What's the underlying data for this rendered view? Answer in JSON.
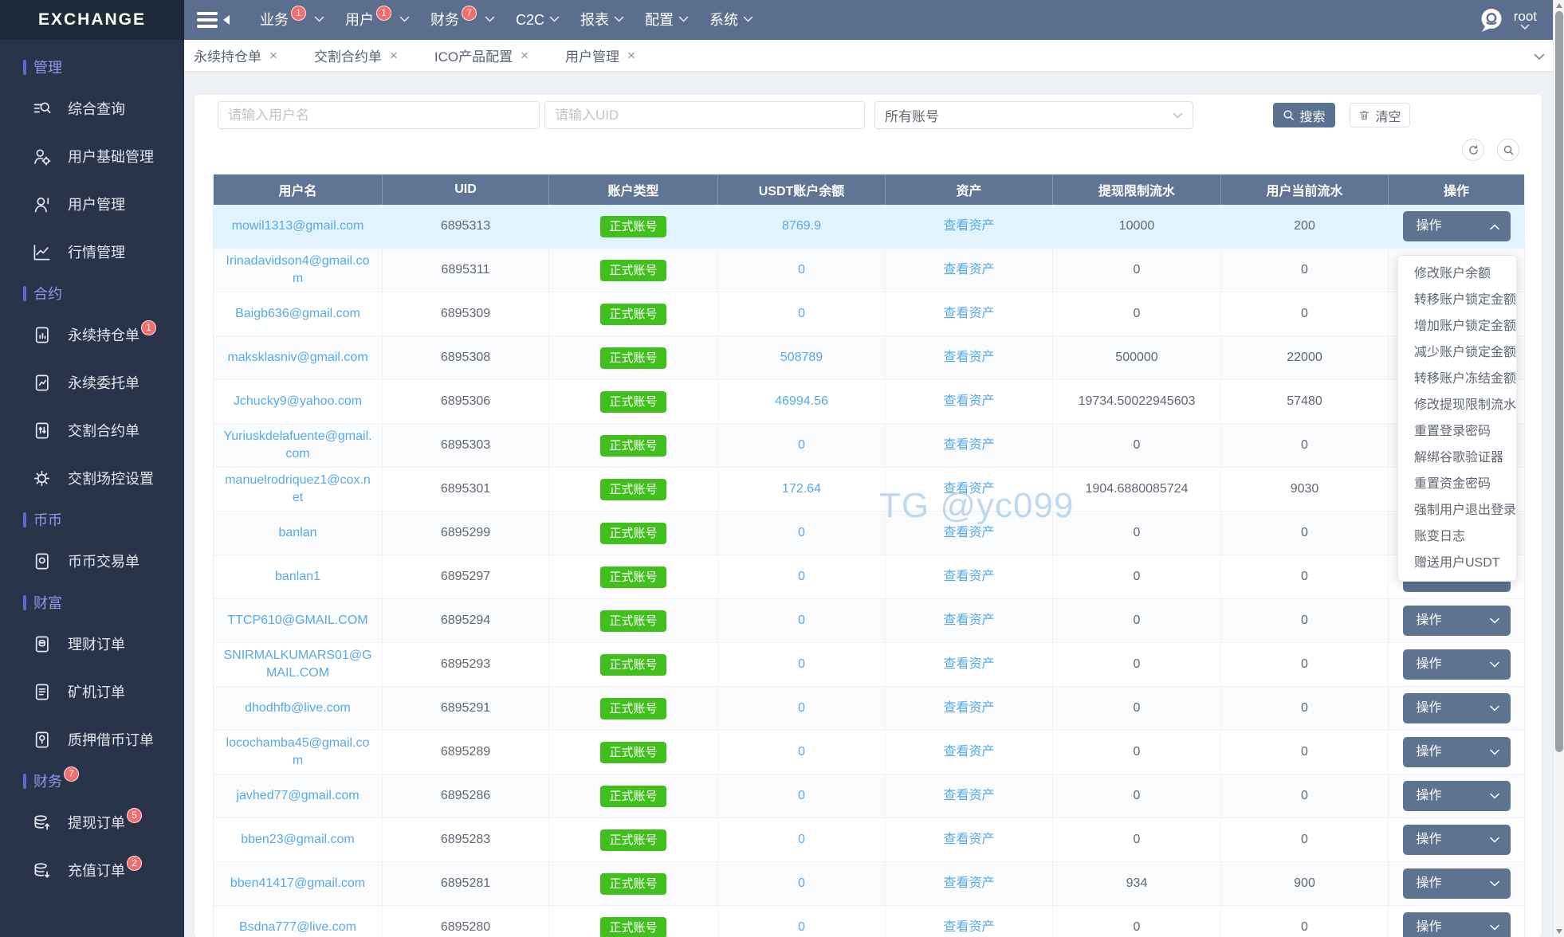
{
  "topbar": {
    "logo": "EXCHANGE",
    "nav": [
      {
        "label": "业务",
        "badge": "1"
      },
      {
        "label": "用户",
        "badge": "1"
      },
      {
        "label": "财务",
        "badge": "7"
      },
      {
        "label": "C2C"
      },
      {
        "label": "报表"
      },
      {
        "label": "配置"
      },
      {
        "label": "系统"
      }
    ],
    "user": {
      "name": "root"
    }
  },
  "sidebar": {
    "entries": [
      {
        "type": "section",
        "label": "管理"
      },
      {
        "type": "item",
        "label": "综合查询",
        "icon": "search-list-icon"
      },
      {
        "type": "item",
        "label": "用户基础管理",
        "icon": "user-gear-icon"
      },
      {
        "type": "item",
        "label": "用户管理",
        "icon": "user-icon"
      },
      {
        "type": "item",
        "label": "行情管理",
        "icon": "chart-line-icon"
      },
      {
        "type": "section",
        "label": "合约"
      },
      {
        "type": "item",
        "label": "永续持仓单",
        "icon": "doc-bars-icon",
        "badge": "1"
      },
      {
        "type": "item",
        "label": "永续委托单",
        "icon": "doc-zigzag-icon"
      },
      {
        "type": "item",
        "label": "交割合约单",
        "icon": "doc-arrows-icon"
      },
      {
        "type": "item",
        "label": "交割场控设置",
        "icon": "gear-arrows-icon"
      },
      {
        "type": "section",
        "label": "币币"
      },
      {
        "type": "item",
        "label": "币币交易单",
        "icon": "doc-coin-icon"
      },
      {
        "type": "section",
        "label": "财富"
      },
      {
        "type": "item",
        "label": "理财订单",
        "icon": "doc-finance-icon"
      },
      {
        "type": "item",
        "label": "矿机订单",
        "icon": "doc-lines-icon"
      },
      {
        "type": "item",
        "label": "质押借币订单",
        "icon": "doc-pledge-icon"
      },
      {
        "type": "section",
        "label": "财务",
        "badge": "7"
      },
      {
        "type": "item",
        "label": "提现订单",
        "icon": "coins-up-icon",
        "badge": "5"
      },
      {
        "type": "item",
        "label": "充值订单",
        "icon": "coins-down-icon",
        "badge": "2"
      }
    ]
  },
  "tabs": {
    "items": [
      {
        "label": "永续持仓单"
      },
      {
        "label": "交割合约单"
      },
      {
        "label": "ICO产品配置"
      },
      {
        "label": "用户管理"
      }
    ]
  },
  "filters": {
    "username_placeholder": "请输入用户名",
    "uid_placeholder": "请输入UID",
    "account_select_value": "所有账号",
    "search_label": "搜索",
    "clear_label": "清空"
  },
  "table": {
    "columns": [
      "用户名",
      "UID",
      "账户类型",
      "USDT账户余额",
      "资产",
      "提现限制流水",
      "用户当前流水",
      "操作"
    ],
    "account_type_label": "正式账号",
    "view_assets_label": "查看资产",
    "action_label": "操作",
    "rows": [
      {
        "username": "mowil1313@gmail.com",
        "uid": "6895313",
        "balance": "8769.9",
        "withdraw_limit_flow": "10000",
        "current_flow": "200",
        "active": true,
        "expanded": true
      },
      {
        "username": "Irinadavidson4@gmail.com",
        "uid": "6895311",
        "balance": "0",
        "withdraw_limit_flow": "0",
        "current_flow": "0"
      },
      {
        "username": "Baigb636@gmail.com",
        "uid": "6895309",
        "balance": "0",
        "withdraw_limit_flow": "0",
        "current_flow": "0"
      },
      {
        "username": "maksklasniv@gmail.com",
        "uid": "6895308",
        "balance": "508789",
        "withdraw_limit_flow": "500000",
        "current_flow": "22000"
      },
      {
        "username": "Jchucky9@yahoo.com",
        "uid": "6895306",
        "balance": "46994.56",
        "withdraw_limit_flow": "19734.50022945603",
        "current_flow": "57480"
      },
      {
        "username": "Yuriuskdelafuente@gmail.com",
        "uid": "6895303",
        "balance": "0",
        "withdraw_limit_flow": "0",
        "current_flow": "0"
      },
      {
        "username": "manuelrodriquez1@cox.net",
        "uid": "6895301",
        "balance": "172.64",
        "withdraw_limit_flow": "1904.6880085724",
        "current_flow": "9030"
      },
      {
        "username": "banlan",
        "uid": "6895299",
        "balance": "0",
        "withdraw_limit_flow": "0",
        "current_flow": "0"
      },
      {
        "username": "banlan1",
        "uid": "6895297",
        "balance": "0",
        "withdraw_limit_flow": "0",
        "current_flow": "0"
      },
      {
        "username": "TTCP610@GMAIL.COM",
        "uid": "6895294",
        "balance": "0",
        "withdraw_limit_flow": "0",
        "current_flow": "0"
      },
      {
        "username": "SNIRMALKUMARS01@GMAIL.COM",
        "uid": "6895293",
        "balance": "0",
        "withdraw_limit_flow": "0",
        "current_flow": "0"
      },
      {
        "username": "dhodhfb@live.com",
        "uid": "6895291",
        "balance": "0",
        "withdraw_limit_flow": "0",
        "current_flow": "0"
      },
      {
        "username": "locochamba45@gmail.com",
        "uid": "6895289",
        "balance": "0",
        "withdraw_limit_flow": "0",
        "current_flow": "0"
      },
      {
        "username": "javhed77@gmail.com",
        "uid": "6895286",
        "balance": "0",
        "withdraw_limit_flow": "0",
        "current_flow": "0"
      },
      {
        "username": "bben23@gmail.com",
        "uid": "6895283",
        "balance": "0",
        "withdraw_limit_flow": "0",
        "current_flow": "0"
      },
      {
        "username": "bben41417@gmail.com",
        "uid": "6895281",
        "balance": "0",
        "withdraw_limit_flow": "934",
        "current_flow": "900"
      },
      {
        "username": "Bsdna777@live.com",
        "uid": "6895280",
        "balance": "0",
        "withdraw_limit_flow": "0",
        "current_flow": "0"
      }
    ]
  },
  "action_menu": {
    "items": [
      "修改账户余额",
      "转移账户锁定金额",
      "增加账户锁定金额",
      "减少账户锁定金额",
      "转移账户冻结金额",
      "修改提现限制流水",
      "重置登录密码",
      "解绑谷歌验证器",
      "重置资金密码",
      "强制用户退出登录",
      "账变日志",
      "赠送用户USDT"
    ]
  },
  "watermark": "TG @yc099",
  "colors": {
    "topbar": "#5b6e8d",
    "sidebar": "#29344a",
    "accent_blue": "#57aae8",
    "success_green": "#41c01d",
    "danger_red": "#f56c6c",
    "table_header": "#5f7593"
  }
}
